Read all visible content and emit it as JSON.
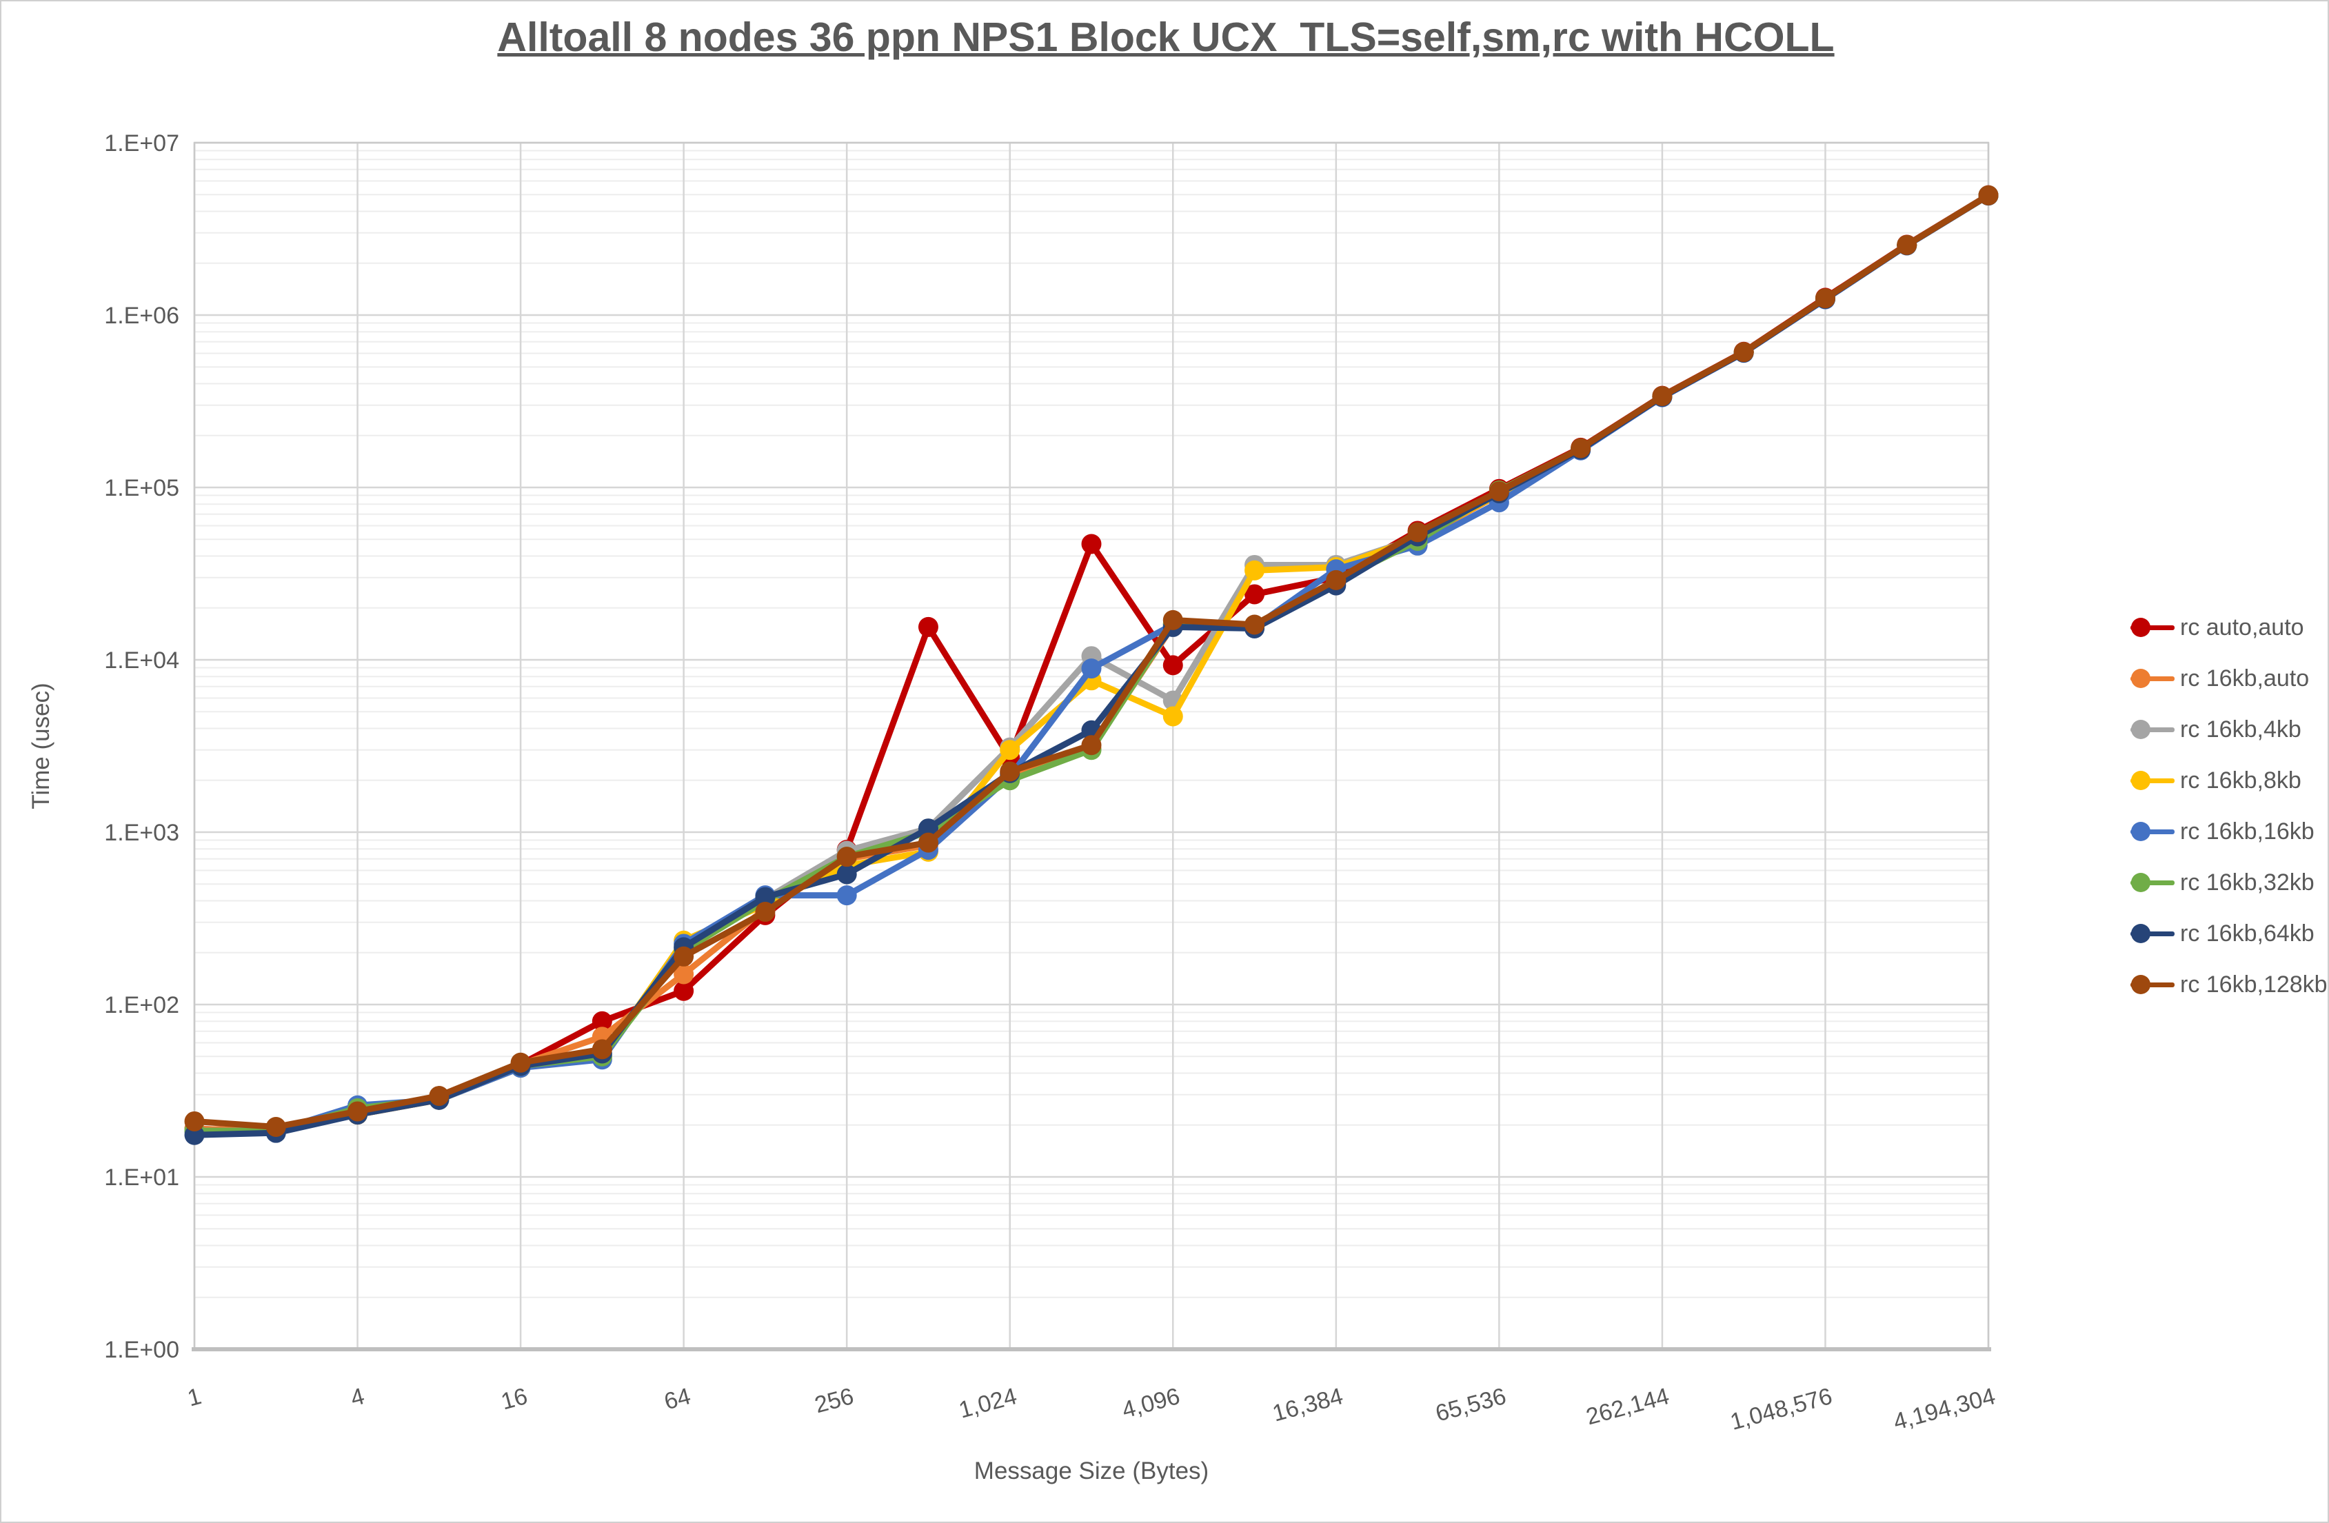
{
  "title": "Alltoall 8 nodes 36 ppn NPS1 Block UCX_TLS=self,sm,rc with HCOLL",
  "axes": {
    "x_label": "Message Size (Bytes)",
    "y_label": "Time (usec)",
    "x_tick_labels": [
      "1",
      "4",
      "16",
      "64",
      "256",
      "1,024",
      "4,096",
      "16,384",
      "65,536",
      "262,144",
      "1,048,576",
      "4,194,304"
    ],
    "y_tick_labels": [
      "1.E+00",
      "1.E+01",
      "1.E+02",
      "1.E+03",
      "1.E+04",
      "1.E+05",
      "1.E+06",
      "1.E+07"
    ]
  },
  "chart_data": {
    "type": "line",
    "x_scale": "log2",
    "y_scale": "log10",
    "xlim": [
      1,
      4194304
    ],
    "ylim": [
      1,
      10000000
    ],
    "grid": "horizontal major+minor (log), vertical major at powers of 4",
    "legend_position": "right",
    "x": [
      1,
      2,
      4,
      8,
      16,
      32,
      64,
      128,
      256,
      512,
      1024,
      2048,
      4096,
      8192,
      16384,
      32768,
      65536,
      131072,
      262144,
      524288,
      1048576,
      2097152,
      4194304
    ],
    "series": [
      {
        "name": "rc auto,auto",
        "color": "#C00000",
        "values": [
          19,
          18.5,
          23,
          28,
          45,
          80,
          120,
          330,
          790,
          15500,
          2700,
          47000,
          9300,
          24000,
          30000,
          56000,
          98000,
          170000,
          340000,
          612000,
          1260000,
          2560000,
          4960000
        ]
      },
      {
        "name": "rc 16kb,auto",
        "color": "#ED7D31",
        "values": [
          19,
          18.5,
          23,
          28,
          45,
          65,
          150,
          360,
          700,
          840,
          2150,
          3050,
          15800,
          15300,
          28000,
          50000,
          91000,
          167000,
          336000,
          606000,
          1240000,
          2540000,
          4940000
        ]
      },
      {
        "name": "rc 16kb,4kb",
        "color": "#A5A5A5",
        "values": [
          18.5,
          18.5,
          23,
          28,
          44,
          51,
          210,
          410,
          780,
          1050,
          3100,
          10500,
          5800,
          35500,
          35500,
          51000,
          92000,
          167000,
          337000,
          607000,
          1245000,
          2545000,
          4945000
        ]
      },
      {
        "name": "rc 16kb,8kb",
        "color": "#FFC000",
        "values": [
          18.5,
          18.5,
          23,
          28,
          43,
          49,
          235,
          380,
          640,
          770,
          3000,
          7600,
          4700,
          33000,
          34500,
          51000,
          91500,
          166500,
          336500,
          606500,
          1242000,
          2542000,
          4942000
        ]
      },
      {
        "name": "rc 16kb,16kb",
        "color": "#4472C4",
        "values": [
          18.5,
          18.5,
          26,
          28,
          43,
          48,
          225,
          430,
          430,
          790,
          2100,
          8900,
          16000,
          15500,
          33500,
          46000,
          82000,
          164000,
          334000,
          604000,
          1235000,
          2535000,
          4935000
        ]
      },
      {
        "name": "rc 16kb,32kb",
        "color": "#70AD47",
        "values": [
          18.5,
          18.5,
          25,
          28.5,
          44,
          50,
          205,
          400,
          720,
          1000,
          2000,
          3000,
          16200,
          15400,
          28500,
          49000,
          96000,
          168000,
          338000,
          608000,
          1248000,
          2548000,
          4948000
        ]
      },
      {
        "name": "rc 16kb,64kb",
        "color": "#264478",
        "values": [
          17.5,
          18,
          23,
          28,
          44,
          52,
          215,
          420,
          570,
          1050,
          2200,
          3900,
          15500,
          15200,
          27000,
          52000,
          92500,
          166000,
          336000,
          606000,
          1242000,
          2542000,
          4942000
        ]
      },
      {
        "name": "rc 16kb,128kb",
        "color": "#9E480E",
        "values": [
          21,
          19.5,
          24,
          29.5,
          46,
          55,
          190,
          345,
          720,
          870,
          2250,
          3200,
          17000,
          16000,
          29000,
          55000,
          95000,
          169000,
          339000,
          610000,
          1250000,
          2550000,
          4950000
        ]
      }
    ]
  },
  "layout_colors": {
    "text": "#595959",
    "grid_minor": "#EDEDED",
    "grid_major": "#D6D6D6",
    "plot_border": "#C9C9C9",
    "axis_line": "#BFBFBF"
  }
}
